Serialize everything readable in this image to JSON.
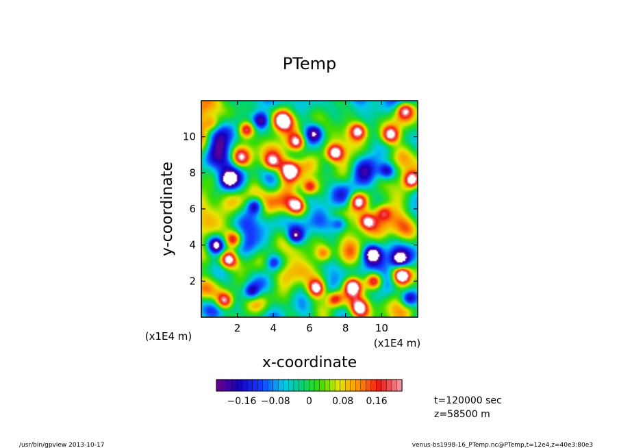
{
  "chart_data": {
    "type": "heatmap",
    "title": "PTemp",
    "xlabel": "x-coordinate",
    "ylabel": "y-coordinate",
    "x_unit": "(x1E4 m)",
    "y_unit": "(x1E4 m)",
    "xlim": [
      0,
      12
    ],
    "ylim": [
      0,
      12
    ],
    "xticks": [
      "2",
      "4",
      "6",
      "8",
      "10"
    ],
    "yticks": [
      "2",
      "4",
      "6",
      "8",
      "10"
    ],
    "colorbar": {
      "tick_labels": [
        "−0.16",
        "−0.08",
        "0",
        "0.08",
        "0.16"
      ],
      "tick_values": [
        -0.16,
        -0.08,
        0,
        0.08,
        0.16
      ],
      "range": [
        -0.22,
        0.22
      ],
      "undefined_color": "#ffffff"
    },
    "blobs": [
      {
        "x": 1.5,
        "y": 3.2,
        "v": 0.3
      },
      {
        "x": 1.3,
        "y": 0.9,
        "v": 0.28
      },
      {
        "x": 6.4,
        "y": 1.6,
        "v": 0.26
      },
      {
        "x": 7.4,
        "y": 1.0,
        "v": 0.24
      },
      {
        "x": 8.4,
        "y": 1.7,
        "v": 0.28
      },
      {
        "x": 9.6,
        "y": 2.0,
        "v": 0.26
      },
      {
        "x": 11.1,
        "y": 2.3,
        "v": 0.3
      },
      {
        "x": 11.7,
        "y": 7.6,
        "v": 0.28
      },
      {
        "x": 10.5,
        "y": 10.1,
        "v": 0.26
      },
      {
        "x": 7.4,
        "y": 9.1,
        "v": 0.28
      },
      {
        "x": 6.0,
        "y": 7.2,
        "v": 0.26
      },
      {
        "x": 8.7,
        "y": 6.4,
        "v": 0.25
      },
      {
        "x": 4.9,
        "y": 8.1,
        "v": 0.24
      },
      {
        "x": 5.3,
        "y": 9.7,
        "v": 0.27
      },
      {
        "x": 8.7,
        "y": 10.3,
        "v": 0.26
      },
      {
        "x": 2.5,
        "y": 10.4,
        "v": 0.28
      },
      {
        "x": 4.5,
        "y": 10.9,
        "v": 0.24
      },
      {
        "x": 1.8,
        "y": 4.3,
        "v": 0.22
      },
      {
        "x": 5.3,
        "y": 6.2,
        "v": 0.24
      },
      {
        "x": 9.2,
        "y": 5.3,
        "v": 0.23
      },
      {
        "x": 8.8,
        "y": 0.5,
        "v": 0.24
      },
      {
        "x": 3.0,
        "y": 6.2,
        "v": -0.22
      },
      {
        "x": 0.8,
        "y": 4.0,
        "v": -0.24
      },
      {
        "x": 2.8,
        "y": 1.4,
        "v": -0.22
      },
      {
        "x": 5.2,
        "y": 4.5,
        "v": -0.22
      },
      {
        "x": 9.5,
        "y": 3.5,
        "v": -0.2
      },
      {
        "x": 11.0,
        "y": 3.2,
        "v": -0.22
      },
      {
        "x": 3.3,
        "y": 10.9,
        "v": -0.2
      },
      {
        "x": 6.3,
        "y": 10.2,
        "v": -0.18
      },
      {
        "x": 10.3,
        "y": 8.1,
        "v": -0.2
      },
      {
        "x": 7.7,
        "y": 5.2,
        "v": -0.18
      },
      {
        "x": 4.0,
        "y": 3.0,
        "v": -0.18
      },
      {
        "x": 1.5,
        "y": 7.6,
        "v": -0.16
      },
      {
        "x": 11.5,
        "y": 1.0,
        "v": -0.2
      },
      {
        "x": 6.8,
        "y": 3.5,
        "v": 0.16
      },
      {
        "x": 3.9,
        "y": 8.6,
        "v": 0.18
      },
      {
        "x": 10.1,
        "y": 5.8,
        "v": 0.16
      },
      {
        "x": 2.2,
        "y": 8.8,
        "v": 0.18
      },
      {
        "x": 0.6,
        "y": 10.7,
        "v": 0.16
      },
      {
        "x": 11.3,
        "y": 11.5,
        "v": 0.2
      }
    ],
    "noise_seed": 7,
    "noise_amplitude": 0.11,
    "time_label": "t=120000 sec",
    "height_label": "z=58500 m"
  },
  "footer": {
    "left": "/usr/bin/gpview   2013-10-17",
    "right": "venus-bs1998-16_PTemp.nc@PTemp,t=12e4,z=40e3:80e3"
  }
}
